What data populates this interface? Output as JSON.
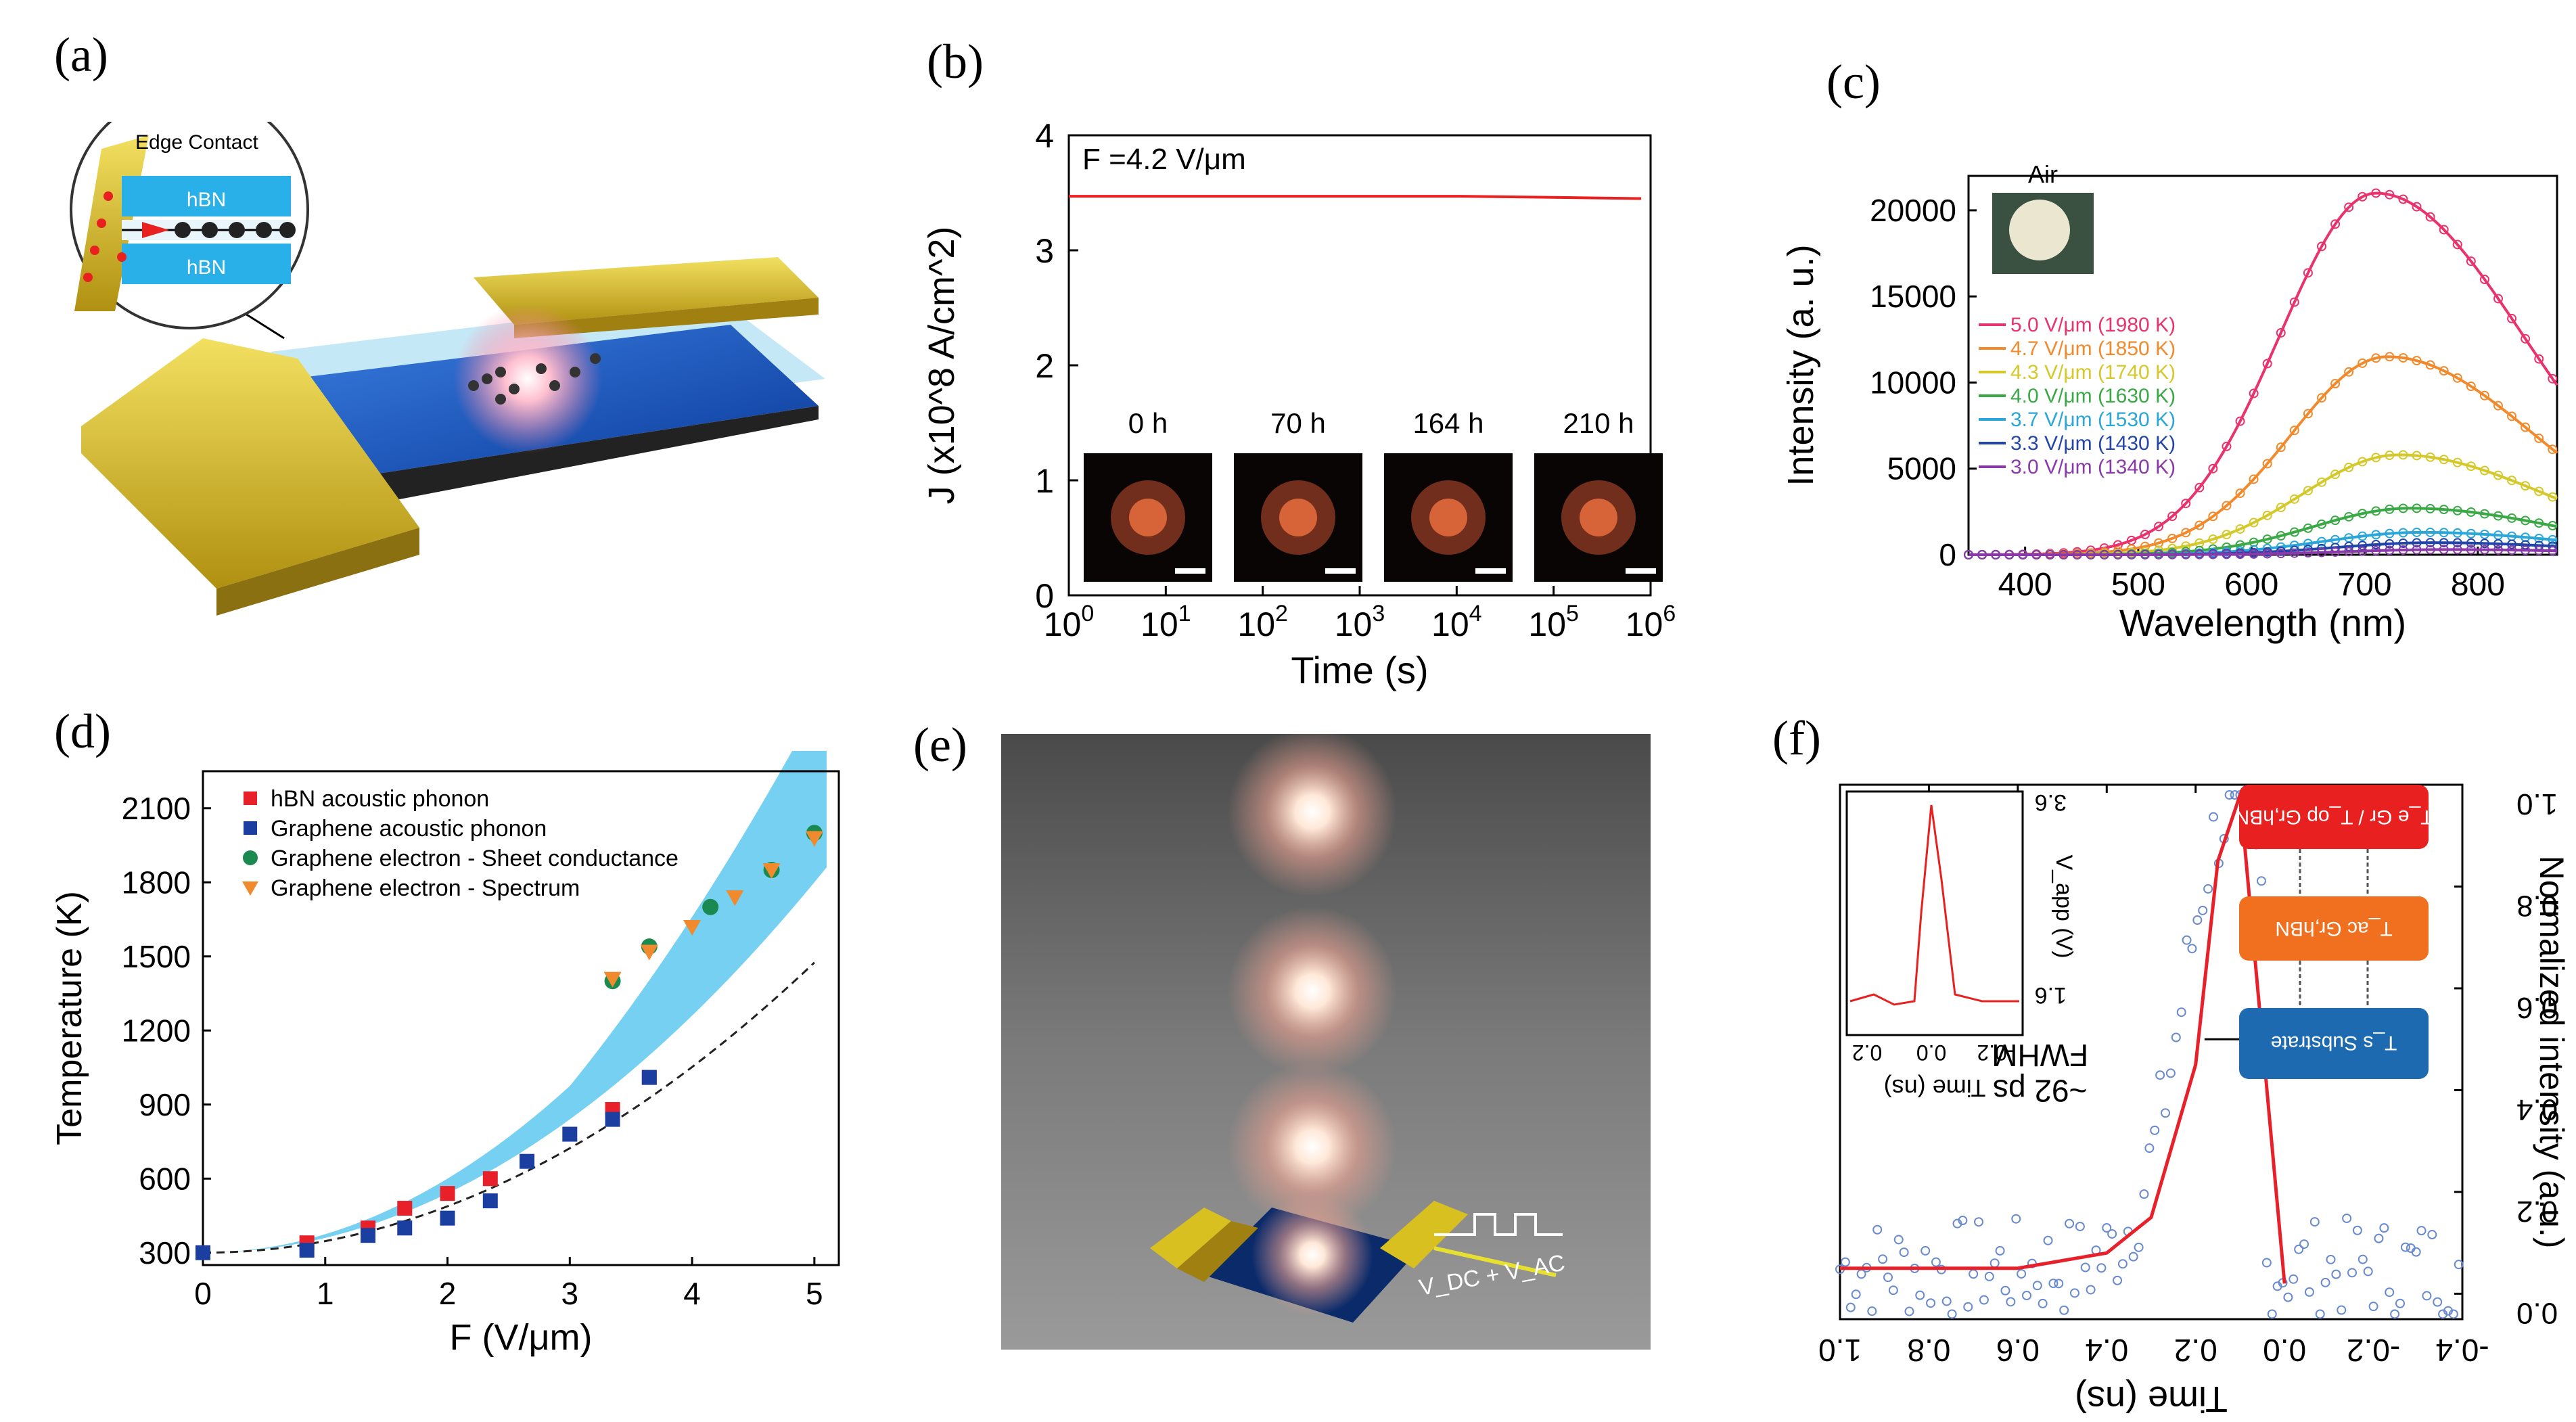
{
  "panels": {
    "a": {
      "label": "(a)",
      "callout_title": "Edge Contact",
      "layer_top": "hBN",
      "layer_bottom": "hBN"
    },
    "b": {
      "label": "(b)",
      "annotation": "F =4.2 V/μm",
      "inset_labels": [
        "0 h",
        "70 h",
        "164 h",
        "210 h"
      ]
    },
    "c": {
      "label": "(c)",
      "inset_title": "Air"
    },
    "d": {
      "label": "(d)"
    },
    "e": {
      "label": "(e)",
      "source_label": "V_DC + V_AC"
    },
    "f": {
      "label": "(f)",
      "fwhm_line1": "FWHM",
      "fwhm_line2": "~92 ps",
      "box_top": "T_e Gr / T_op Gr,hBN",
      "box_mid": "T_ac Gr,hBN",
      "box_bot": "T_s Substrate",
      "inset_xlabel": "Time (ns)",
      "inset_ylabel": "V_app (V)",
      "inset_yticks": [
        "3.6",
        "1.6"
      ],
      "inset_xticks": [
        "0.2",
        "0.0",
        "-0.2"
      ]
    }
  },
  "chart_data": [
    {
      "id": "b",
      "type": "line",
      "xlabel": "Time (s)",
      "ylabel": "J (x10^8 A/cm^2)",
      "x_scale": "log",
      "xlim": [
        1,
        1000000
      ],
      "ylim": [
        0,
        4
      ],
      "xticks": [
        "10^0",
        "10^1",
        "10^2",
        "10^3",
        "10^4",
        "10^5",
        "10^6"
      ],
      "yticks": [
        "0",
        "1",
        "2",
        "3",
        "4"
      ],
      "series": [
        {
          "name": "J",
          "x": [
            1,
            10,
            100,
            1000,
            10000,
            100000,
            800000
          ],
          "y": [
            3.47,
            3.47,
            3.47,
            3.47,
            3.47,
            3.46,
            3.45
          ]
        }
      ]
    },
    {
      "id": "c",
      "type": "line",
      "xlabel": "Wavelength (nm)",
      "ylabel": "Intensity (a. u.)",
      "xlim": [
        350,
        870
      ],
      "ylim": [
        0,
        22000
      ],
      "xticks": [
        "400",
        "500",
        "600",
        "700",
        "800"
      ],
      "yticks": [
        "0",
        "5000",
        "10000",
        "15000",
        "20000"
      ],
      "series": [
        {
          "name": "5.0 V/μm (1980 K)",
          "color": "#e8336d",
          "peak": 21000,
          "center": 710
        },
        {
          "name": "4.7 V/μm (1850 K)",
          "color": "#f08a2c",
          "peak": 11500,
          "center": 720
        },
        {
          "name": "4.3 V/μm (1740 K)",
          "color": "#d4c82a",
          "peak": 5800,
          "center": 730
        },
        {
          "name": "4.0 V/μm (1630 K)",
          "color": "#3aa845",
          "peak": 2700,
          "center": 740
        },
        {
          "name": "3.7 V/μm (1530 K)",
          "color": "#2aa6d8",
          "peak": 1300,
          "center": 750
        },
        {
          "name": "3.3 V/μm (1430 K)",
          "color": "#2345a8",
          "peak": 700,
          "center": 760
        },
        {
          "name": "3.0 V/μm (1340 K)",
          "color": "#8a3aa8",
          "peak": 300,
          "center": 770
        }
      ]
    },
    {
      "id": "d",
      "type": "scatter",
      "xlabel": "F (V/μm)",
      "ylabel": "Temperature (K)",
      "xlim": [
        0,
        5.2
      ],
      "ylim": [
        250,
        2250
      ],
      "xticks": [
        "0",
        "1",
        "2",
        "3",
        "4",
        "5"
      ],
      "yticks": [
        "300",
        "600",
        "900",
        "1200",
        "1500",
        "1800",
        "2100"
      ],
      "series": [
        {
          "name": "hBN acoustic phonon",
          "color": "#e8202a",
          "marker": "square",
          "x": [
            0.85,
            1.35,
            1.65,
            2.0,
            2.35,
            3.35,
            3.65
          ],
          "y": [
            340,
            400,
            480,
            540,
            600,
            880,
            1010
          ]
        },
        {
          "name": "Graphene acoustic phonon",
          "color": "#1a3fa0",
          "marker": "square",
          "x": [
            0,
            0.85,
            1.35,
            1.65,
            2.0,
            2.35,
            2.65,
            3.0,
            3.35,
            3.65
          ],
          "y": [
            300,
            310,
            370,
            400,
            440,
            510,
            670,
            780,
            840,
            1010
          ]
        },
        {
          "name": "Graphene electron - Sheet conductance",
          "color": "#1a8a50",
          "marker": "circle",
          "x": [
            3.35,
            3.65,
            4.15,
            4.65,
            5.0
          ],
          "y": [
            1400,
            1540,
            1700,
            1850,
            2000
          ]
        },
        {
          "name": "Graphene electron - Spectrum",
          "color": "#f08a2c",
          "marker": "triangle",
          "x": [
            3.35,
            3.65,
            4.0,
            4.35,
            4.65,
            5.0
          ],
          "y": [
            1410,
            1520,
            1620,
            1740,
            1850,
            1980
          ]
        }
      ]
    },
    {
      "id": "f",
      "type": "line",
      "xlabel": "Time (ns)",
      "ylabel": "Normalized intensity (a.u.)",
      "x_reversed": true,
      "xlim": [
        1.0,
        -0.4
      ],
      "ylim": [
        -0.05,
        1.0
      ],
      "xticks": [
        "1.0",
        "0.8",
        "0.6",
        "0.4",
        "0.2",
        "0.0",
        "-0.2",
        "-0.4"
      ],
      "yticks": [
        "0.0",
        "0.2",
        "0.4",
        "0.6",
        "0.8",
        "1.0"
      ],
      "series": [
        {
          "name": "fit",
          "color": "#e8202a",
          "x": [
            1.0,
            0.6,
            0.4,
            0.3,
            0.2,
            0.15,
            0.1,
            0.05,
            0.0
          ],
          "y": [
            0.05,
            0.05,
            0.08,
            0.15,
            0.45,
            0.85,
            0.98,
            0.5,
            0.02
          ]
        }
      ]
    }
  ]
}
